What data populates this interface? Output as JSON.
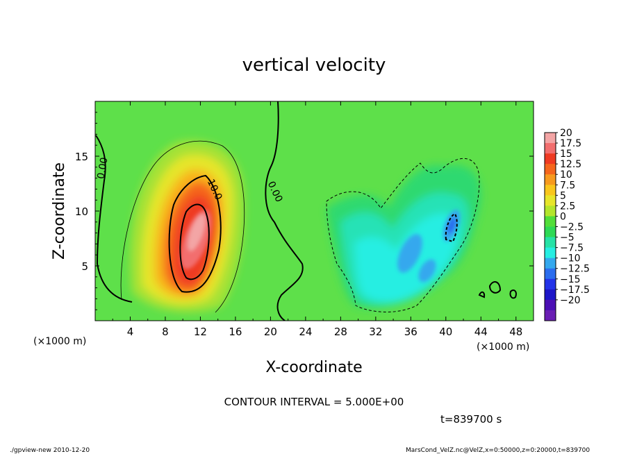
{
  "chart_data": {
    "type": "heatmap",
    "title": "vertical velocity",
    "xlabel": "X-coordinate",
    "ylabel": "Z-coordinate",
    "x_unit": "(×1000 m)",
    "y_unit": "(×1000 m)",
    "xlim": [
      0,
      50
    ],
    "ylim": [
      0,
      20
    ],
    "x_ticks": [
      "4",
      "8",
      "12",
      "16",
      "20",
      "24",
      "28",
      "32",
      "36",
      "40",
      "44",
      "48"
    ],
    "x_tick_values": [
      4,
      8,
      12,
      16,
      20,
      24,
      28,
      32,
      36,
      40,
      44,
      48
    ],
    "y_ticks": [
      "5",
      "10",
      "15"
    ],
    "y_tick_values": [
      5,
      10,
      15
    ],
    "colorbar": {
      "labels": [
        "20",
        "17.5",
        "15",
        "12.5",
        "10",
        "7.5",
        "5",
        "2.5",
        "0",
        "−2.5",
        "−5",
        "−7.5",
        "−10",
        "−12.5",
        "−15",
        "−17.5",
        "−20"
      ],
      "values": [
        20,
        17.5,
        15,
        12.5,
        10,
        7.5,
        5,
        2.5,
        0,
        -2.5,
        -5,
        -7.5,
        -10,
        -12.5,
        -15,
        -17.5,
        -20
      ],
      "colors": [
        "#f3a5a5",
        "#f26e6e",
        "#ef3a22",
        "#f5661c",
        "#f79a1e",
        "#f9c61c",
        "#e7e52a",
        "#b4e52c",
        "#52de3a",
        "#2ed955",
        "#26e2a6",
        "#26eee2",
        "#34a8ee",
        "#2b6dee",
        "#2333e8",
        "#1d16c8",
        "#4b0fb4",
        "#6a1eb4"
      ]
    },
    "contour_labels": [
      "0.00",
      "10.0",
      "0.00"
    ],
    "contour_interval": "CONTOUR INTERVAL = 5.000E+00",
    "updraft": {
      "x": 11.5,
      "z": 8,
      "peak": 20
    },
    "downdraft": {
      "x": 40,
      "z": 8.5,
      "min": -10
    }
  },
  "time_label": "t=839700 s",
  "footer_left": "./gpview-new   2010-12-20",
  "footer_right": "MarsCond_VelZ.nc@VelZ,x=0:50000,z=0:20000,t=839700"
}
